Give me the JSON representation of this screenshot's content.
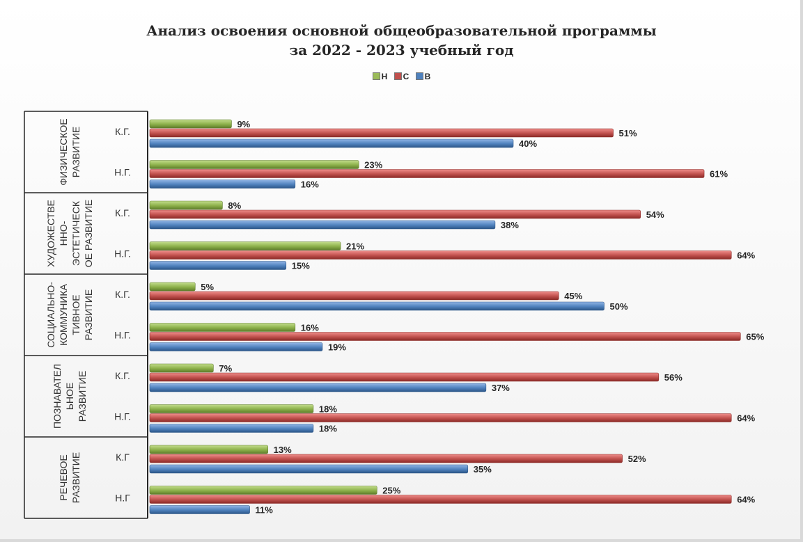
{
  "chart_data": {
    "type": "bar",
    "orientation": "horizontal",
    "title_lines": [
      "Анализ освоения основной общеобразовательной программы",
      "за 2022 - 2023 учебный год"
    ],
    "legend": [
      {
        "name": "Н",
        "color": "#9bbb59"
      },
      {
        "name": "С",
        "color": "#c0504d"
      },
      {
        "name": "В",
        "color": "#4f81bd"
      }
    ],
    "legend_position": "top",
    "xlim": [
      0,
      66
    ],
    "unit": "%",
    "groups": [
      {
        "label_lines": [
          "ФИЗИЧЕСКОЕ",
          "РАЗВИТИЕ"
        ],
        "rows": [
          {
            "label": "К.Г.",
            "values": {
              "Н": 9,
              "С": 51,
              "В": 40
            }
          },
          {
            "label": "Н.Г.",
            "values": {
              "Н": 23,
              "С": 61,
              "В": 16
            }
          }
        ]
      },
      {
        "label_lines": [
          "ХУДОЖЕСТВЕ",
          "ННО-",
          "ЭСТЕТИЧЕСК",
          "ОЕ РАЗВИТИЕ"
        ],
        "rows": [
          {
            "label": "К.Г.",
            "values": {
              "Н": 8,
              "С": 54,
              "В": 38
            }
          },
          {
            "label": "Н.Г.",
            "values": {
              "Н": 21,
              "С": 64,
              "В": 15
            }
          }
        ]
      },
      {
        "label_lines": [
          "СОЦИАЛЬНО-",
          "КОММУНИКА",
          "ТИВНОЕ",
          "РАЗВИТИЕ"
        ],
        "rows": [
          {
            "label": "К.Г.",
            "values": {
              "Н": 5,
              "С": 45,
              "В": 50
            }
          },
          {
            "label": "Н.Г.",
            "values": {
              "Н": 16,
              "С": 65,
              "В": 19
            }
          }
        ]
      },
      {
        "label_lines": [
          "ПОЗНАВАТЕЛ",
          "ЬНОЕ",
          "РАЗВИТИЕ"
        ],
        "rows": [
          {
            "label": "К.Г.",
            "values": {
              "Н": 7,
              "С": 56,
              "В": 37
            }
          },
          {
            "label": "Н.Г.",
            "values": {
              "Н": 18,
              "С": 64,
              "В": 18
            }
          }
        ]
      },
      {
        "label_lines": [
          "РЕЧЕВОЕ",
          "РАЗВИТИЕ"
        ],
        "rows": [
          {
            "label": "К.Г",
            "values": {
              "Н": 13,
              "С": 52,
              "В": 35
            }
          },
          {
            "label": "Н.Г",
            "values": {
              "Н": 25,
              "С": 64,
              "В": 11
            }
          }
        ]
      }
    ]
  }
}
